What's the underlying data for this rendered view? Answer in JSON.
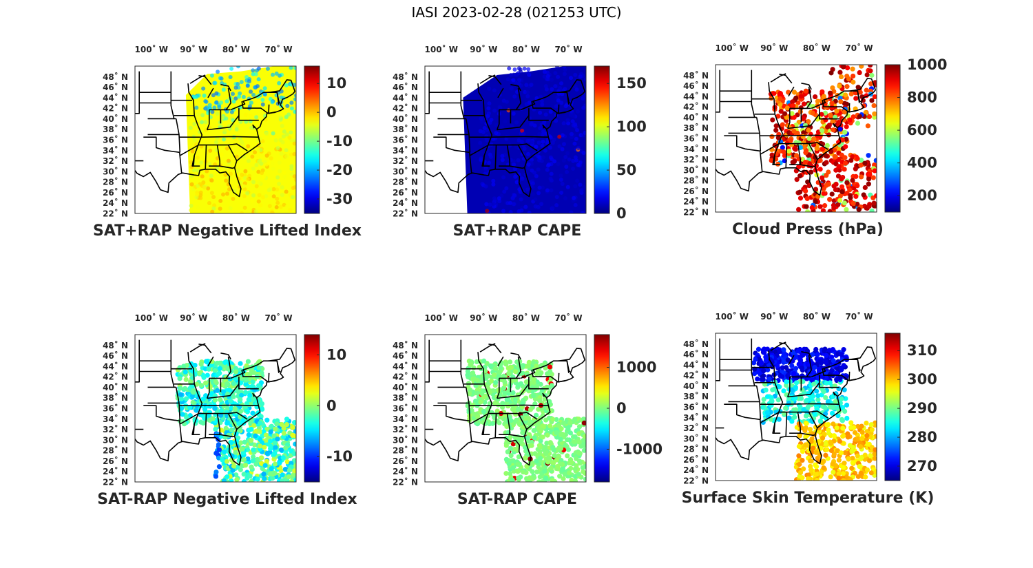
{
  "title": "IASI 2023-02-28 (021253 UTC)",
  "lon_labels": [
    "100˚ W",
    "90˚ W",
    "80˚ W",
    "70˚ W"
  ],
  "lat_labels": [
    "48˚ N",
    "46˚ N",
    "44˚ N",
    "42˚ N",
    "40˚ N",
    "38˚ N",
    "36˚ N",
    "34˚ N",
    "32˚ N",
    "30˚ N",
    "28˚ N",
    "26˚ N",
    "24˚ N",
    "22˚ N"
  ],
  "map_extent": {
    "lon_min": -105,
    "lon_max": -67,
    "lat_min": 22,
    "lat_max": 50
  },
  "colormap": "jet",
  "panels": [
    {
      "title": "SAT+RAP Negative Lifted Index",
      "colorbar_ticks": [
        "10",
        "0",
        "-10",
        "-20",
        "-30"
      ],
      "colorbar_range": [
        -35,
        16
      ],
      "field": "swath",
      "field_level": 0.62
    },
    {
      "title": "SAT+RAP CAPE",
      "colorbar_ticks": [
        "150",
        "100",
        "50",
        "0"
      ],
      "colorbar_range": [
        0,
        170
      ],
      "field": "swath",
      "field_level": 0.05
    },
    {
      "title": "Cloud Press (hPa)",
      "colorbar_ticks": [
        "1000",
        "800",
        "600",
        "400",
        "200"
      ],
      "colorbar_range": [
        100,
        1000
      ],
      "field": "dots",
      "field_level": 0.85
    },
    {
      "title": "SAT-RAP Negative Lifted Index",
      "colorbar_ticks": [
        "10",
        "0",
        "-10"
      ],
      "colorbar_range": [
        -15,
        14
      ],
      "field": "dots",
      "field_level": 0.45
    },
    {
      "title": "SAT-RAP CAPE",
      "colorbar_ticks": [
        "1000",
        "0",
        "-1000"
      ],
      "colorbar_range": [
        -1800,
        1800
      ],
      "field": "dots",
      "field_level": 0.55
    },
    {
      "title": "Surface Skin Temperature (K)",
      "colorbar_ticks": [
        "310",
        "300",
        "290",
        "280",
        "270"
      ],
      "colorbar_range": [
        265,
        316
      ],
      "field": "dots",
      "field_level": 0.55
    }
  ]
}
